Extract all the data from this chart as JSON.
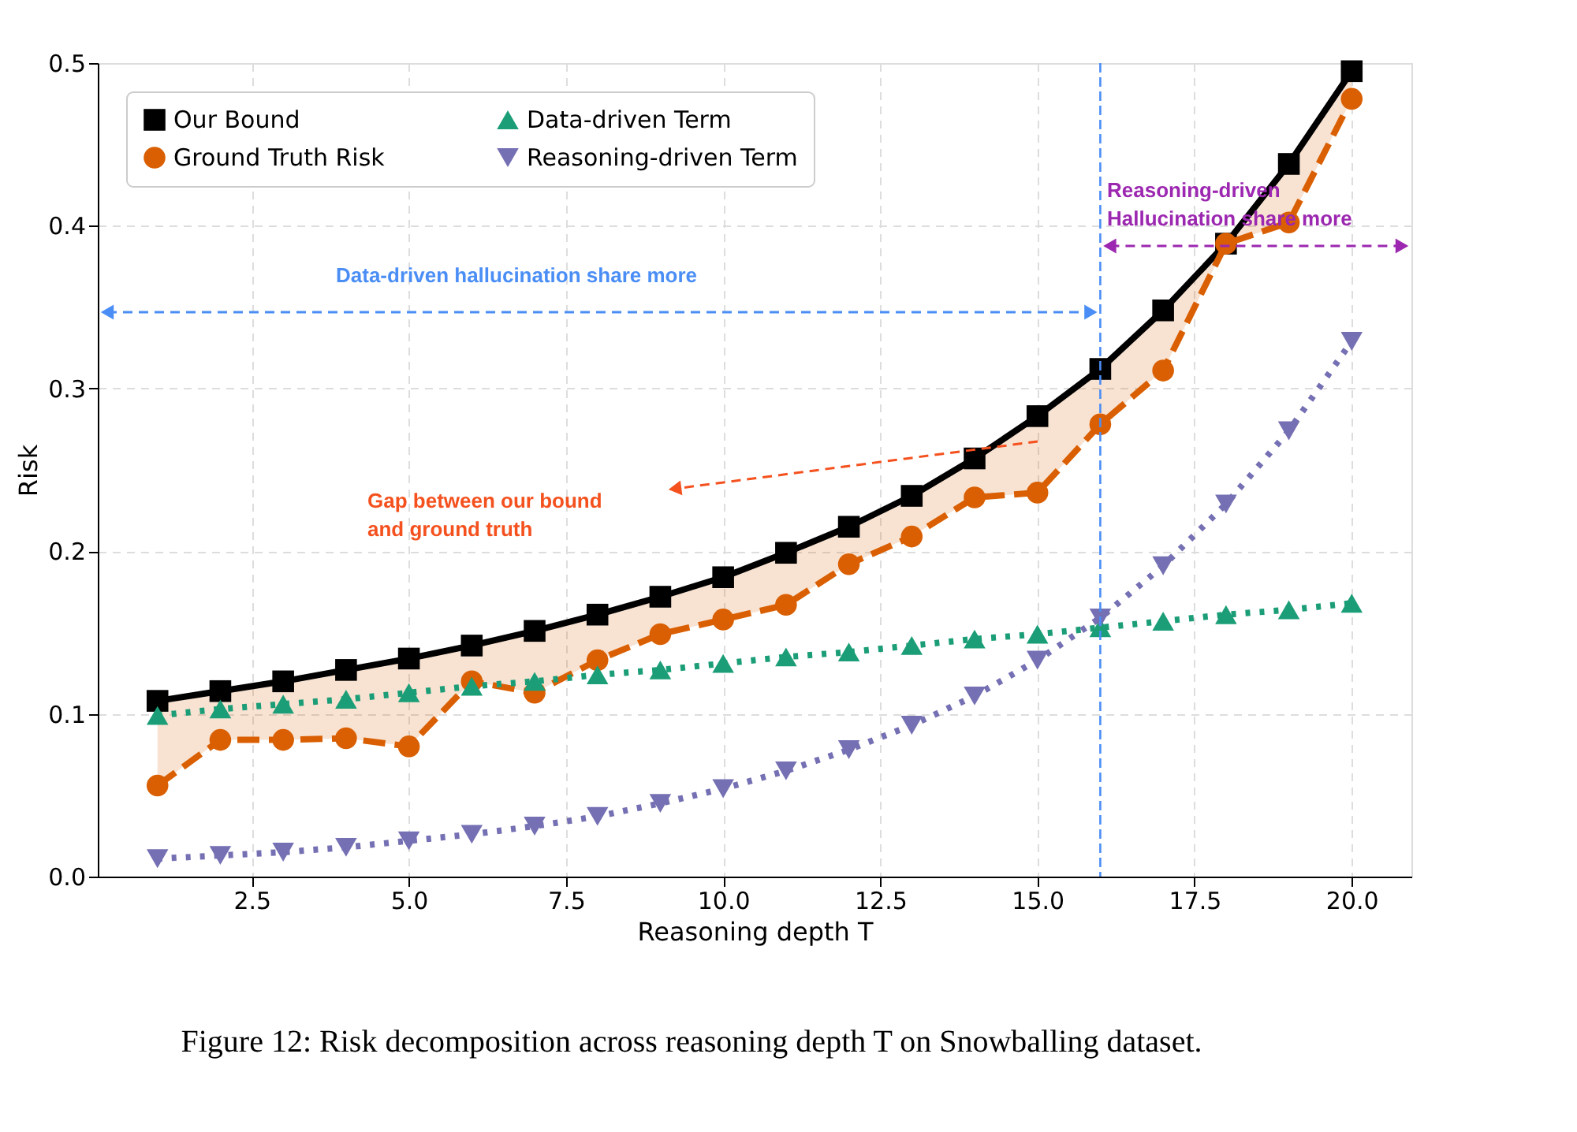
{
  "chart_data": {
    "type": "line",
    "xlabel": "Reasoning depth T",
    "ylabel": "Risk",
    "x": [
      1,
      2,
      3,
      4,
      5,
      6,
      7,
      8,
      9,
      10,
      11,
      12,
      13,
      14,
      15,
      16,
      17,
      18,
      19,
      20
    ],
    "series": [
      {
        "name": "Our Bound",
        "color": "#000000",
        "marker": "square",
        "line_style": "solid",
        "values": [
          0.108,
          0.114,
          0.12,
          0.127,
          0.134,
          0.142,
          0.151,
          0.161,
          0.172,
          0.184,
          0.199,
          0.215,
          0.234,
          0.257,
          0.283,
          0.312,
          0.348,
          0.389,
          0.438,
          0.495
        ]
      },
      {
        "name": "Ground Truth Risk",
        "color": "#d95f02",
        "marker": "circle",
        "line_style": "dashed",
        "values": [
          0.056,
          0.084,
          0.084,
          0.085,
          0.08,
          0.12,
          0.113,
          0.133,
          0.149,
          0.158,
          0.167,
          0.192,
          0.209,
          0.233,
          0.236,
          0.278,
          0.311,
          0.389,
          0.402,
          0.478
        ],
        "lower": [
          0.056,
          0.084,
          0.084,
          0.085,
          0.08,
          0.12,
          0.113,
          0.133,
          0.149,
          0.158,
          0.167,
          0.192,
          0.209,
          0.233,
          0.236,
          0.278,
          0.311,
          0.389,
          0.402,
          0.478
        ],
        "upper": [
          0.108,
          0.114,
          0.12,
          0.127,
          0.134,
          0.142,
          0.151,
          0.161,
          0.172,
          0.184,
          0.199,
          0.215,
          0.234,
          0.257,
          0.283,
          0.312,
          0.348,
          0.389,
          0.438,
          0.495
        ]
      },
      {
        "name": "Data-driven Term",
        "color": "#1b9e77",
        "marker": "triangle",
        "line_style": "dotted",
        "values": [
          0.099,
          0.103,
          0.106,
          0.109,
          0.113,
          0.117,
          0.12,
          0.124,
          0.127,
          0.131,
          0.135,
          0.138,
          0.142,
          0.146,
          0.149,
          0.153,
          0.157,
          0.161,
          0.164,
          0.168
        ]
      },
      {
        "name": "Reasoning-driven Term",
        "color": "#7570b3",
        "marker": "triangle-down",
        "line_style": "dotted",
        "values": [
          0.011,
          0.013,
          0.015,
          0.018,
          0.022,
          0.026,
          0.031,
          0.037,
          0.045,
          0.054,
          0.065,
          0.078,
          0.093,
          0.111,
          0.133,
          0.159,
          0.191,
          0.229,
          0.274,
          0.329
        ]
      }
    ],
    "xlim": [
      0.05,
      20.95
    ],
    "xticks": [
      {
        "value": 2.5,
        "label": "2.5"
      },
      {
        "value": 5,
        "label": "5.0"
      },
      {
        "value": 7.5,
        "label": "7.5"
      },
      {
        "value": 10,
        "label": "10.0"
      },
      {
        "value": 12.5,
        "label": "12.5"
      },
      {
        "value": 15,
        "label": "15.0"
      },
      {
        "value": 17.5,
        "label": "17.5"
      },
      {
        "value": 20,
        "label": "20.0"
      }
    ],
    "ylim": [
      0,
      0.5
    ],
    "yticks": [
      {
        "value": 0,
        "label": "0.0"
      },
      0.1,
      0.2,
      0.3,
      0.4,
      0.5
    ],
    "ref_lines": [
      {
        "axis": "x",
        "value": 16,
        "color": "#4a8ef5",
        "line_style": "dashed"
      }
    ],
    "annotations": [
      "Data-driven hallucination share more",
      "Gap between our bound\nand ground truth",
      "Reasoning-driven\nHallucination share more",
      "Figure 12: Risk decomposition across reasoning depth T on Snowballing dataset."
    ],
    "grid": true,
    "legend": "top left"
  }
}
